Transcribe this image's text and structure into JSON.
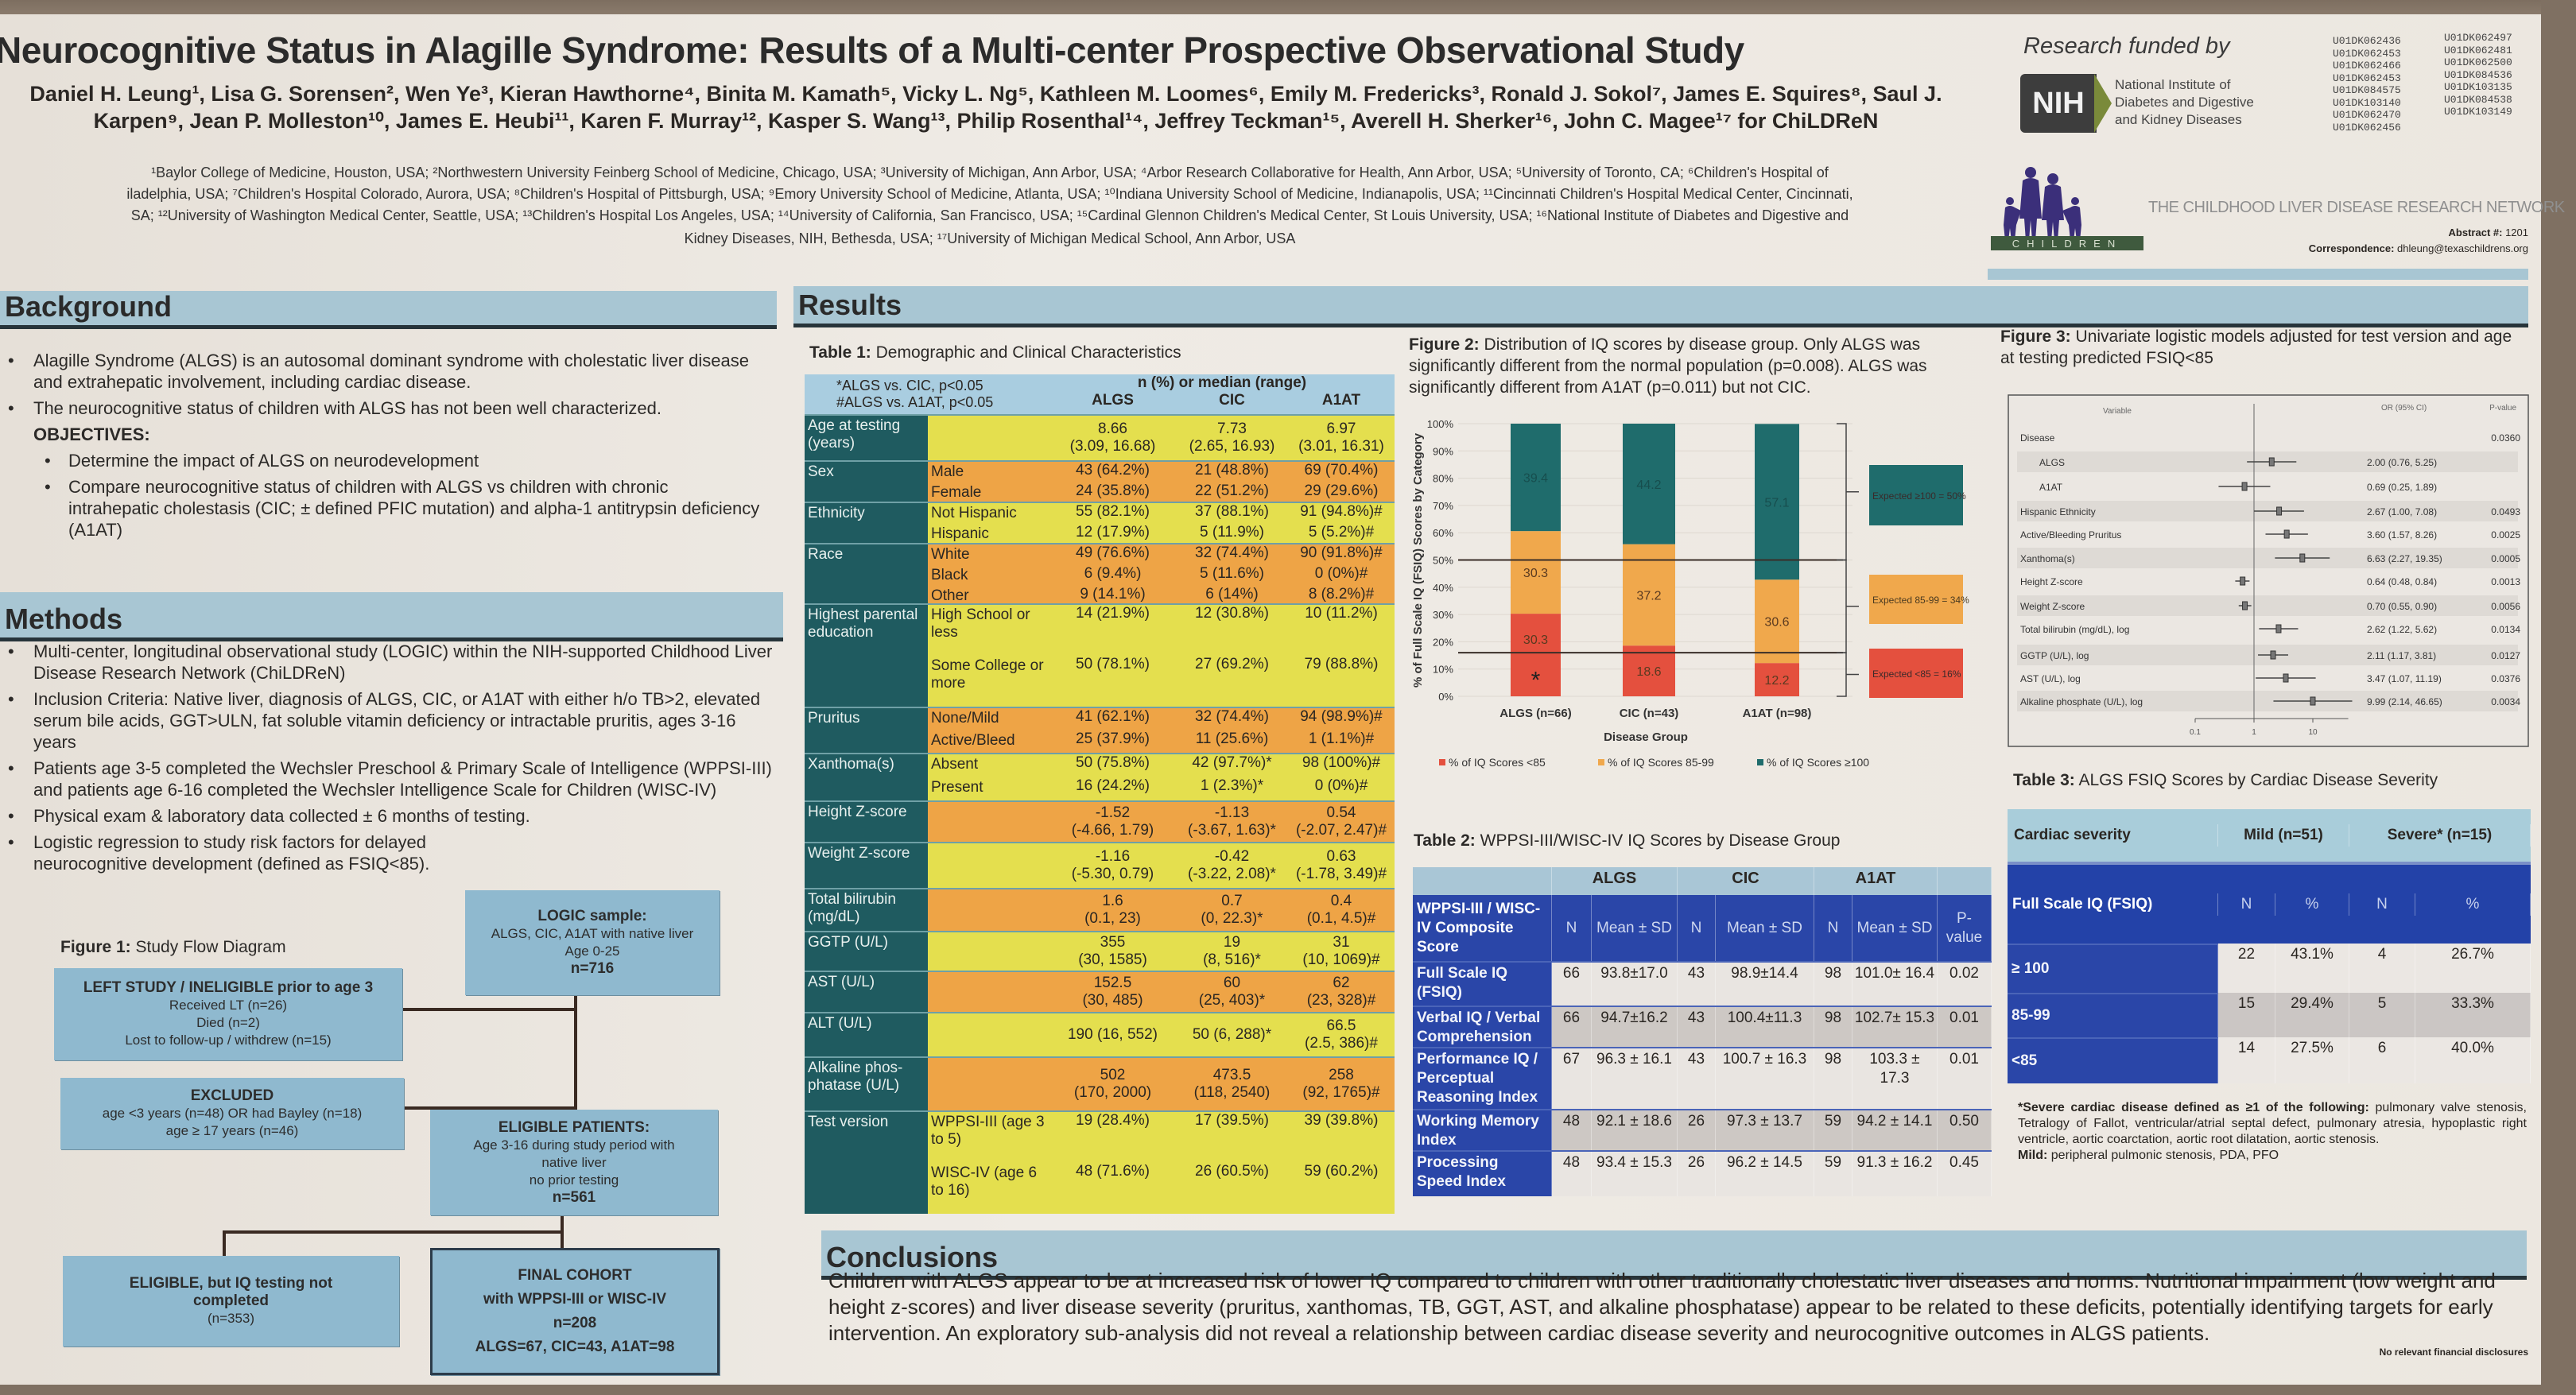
{
  "poster": {
    "title": "Neurocognitive Status in Alagille Syndrome: Results of a Multi-center Prospective Observational Study",
    "authors_line1": "Daniel H. Leung¹, Lisa G. Sorensen², Wen Ye³, Kieran Hawthorne⁴, Binita M. Kamath⁵, Vicky L. Ng⁵, Kathleen M. Loomes⁶, Emily M. Fredericks³, Ronald J. Sokol⁷, James E. Squires⁸, Saul J.",
    "authors_line2": "Karpen⁹, Jean P. Molleston¹⁰, James E. Heubi¹¹, Karen F. Murray¹², Kasper S. Wang¹³, Philip Rosenthal¹⁴, Jeffrey Teckman¹⁵, Averell H. Sherker¹⁶, John C. Magee¹⁷ for ChiLDReN",
    "affiliations": [
      "¹Baylor College of Medicine, Houston, USA; ²Northwestern University Feinberg School of Medicine, Chicago, USA; ³University of Michigan, Ann Arbor, USA; ⁴Arbor Research Collaborative for Health, Ann Arbor, USA; ⁵University of Toronto, CA; ⁶Children's Hospital of",
      "iladelphia, USA; ⁷Children's Hospital Colorado, Aurora, USA; ⁸Children's Hospital of Pittsburgh, USA; ⁹Emory University School of Medicine, Atlanta, USA; ¹⁰Indiana University School of Medicine, Indianapolis, USA; ¹¹Cincinnati Children's Hospital Medical Center, Cincinnati,",
      "SA; ¹²University of Washington Medical Center, Seattle, USA; ¹³Children's Hospital Los Angeles, USA; ¹⁴University of California, San Francisco, USA; ¹⁵Cardinal Glennon Children's Medical Center, St Louis University, USA; ¹⁶National Institute of Diabetes and Digestive and",
      "Kidney Diseases, NIH, Bethesda, USA; ¹⁷University of Michigan Medical School, Ann Arbor, USA"
    ]
  },
  "funding": {
    "label": "Research funded by",
    "nih_logo": "NIH",
    "institute_lines": [
      "National Institute of",
      "Diabetes and Digestive",
      "and Kidney Diseases"
    ],
    "grants_col1": [
      "U01DK062436",
      "U01DK062453",
      "U01DK062466",
      "U01DK062453",
      "U01DK084575",
      "U01DK103140",
      "U01DK062470",
      "U01DK062456"
    ],
    "grants_col2": [
      "U01DK062497",
      "U01DK062481",
      "U01DK062500",
      "U01DK084536",
      "U01DK103135",
      "U01DK084538",
      "U01DK103149"
    ]
  },
  "network": {
    "logo_text": "CHILDREN",
    "name": "THE CHILDHOOD LIVER DISEASE RESEARCH NETWORK",
    "abstract_label": "Abstract #:",
    "abstract_value": "1201",
    "correspondence_label": "Correspondence:",
    "correspondence_value": "dhleung@texaschildrens.org",
    "logo_colors": {
      "figures": "#3b2f7a",
      "band": "#3f5a3e"
    }
  },
  "background": {
    "heading": "Background",
    "bullets": [
      "Alagille Syndrome (ALGS) is an autosomal dominant syndrome with cholestatic liver disease and extrahepatic involvement, including cardiac disease.",
      "The neurocognitive status of children with ALGS has not been well characterized."
    ],
    "objectives_label": "OBJECTIVES:",
    "objectives": [
      "Determine the impact of ALGS on neurodevelopment",
      "Compare neurocognitive status of children with ALGS vs children with chronic intrahepatic cholestasis (CIC; ± defined PFIC mutation) and alpha-1 antitrypsin deficiency (A1AT)"
    ]
  },
  "methods": {
    "heading": "Methods",
    "bullets": [
      "Multi-center, longitudinal observational study (LOGIC) within the NIH-supported Childhood Liver Disease Research Network (ChiLDReN)",
      "Inclusion Criteria: Native liver, diagnosis of ALGS, CIC, or A1AT with either h/o TB>2, elevated serum bile acids, GGT>ULN, fat soluble vitamin deficiency or intractable pruritis, ages 3-16 years",
      "Patients age 3-5 completed the Wechsler Preschool & Primary Scale of Intelligence (WPPSI-III) and patients age 6-16 completed the Wechsler Intelligence Scale for Children (WISC-IV)",
      "Physical exam & laboratory data collected ± 6 months of testing.",
      "Logistic regression to study risk factors for delayed neurocognitive development (defined as FSIQ<85)."
    ]
  },
  "figure1": {
    "caption_bold": "Figure 1:",
    "caption": "Study Flow Diagram",
    "logic": {
      "title": "LOGIC sample:",
      "lines": [
        "ALGS, CIC, A1AT with native liver",
        "Age 0-25",
        "n=716"
      ]
    },
    "left_study": {
      "title_bold": "LEFT STUDY / INELIGIBLE",
      "title_rest": "prior to age 3",
      "lines": [
        "Received LT (n=26)",
        "Died (n=2)",
        "Lost to follow-up / withdrew (n=15)"
      ]
    },
    "excluded": {
      "title": "EXCLUDED",
      "lines": [
        "age <3 years (n=48) OR had Bayley (n=18)",
        "age ≥ 17 years (n=46)"
      ]
    },
    "eligible": {
      "title": "ELIGIBLE PATIENTS:",
      "lines": [
        "Age 3-16 during study period with",
        "native liver",
        "no prior testing",
        "n=561"
      ]
    },
    "not_tested": {
      "title": "ELIGIBLE, but IQ testing not completed",
      "lines": [
        "(n=353)"
      ]
    },
    "final": {
      "title": "FINAL COHORT",
      "lines": [
        "with WPPSI-III or WISC-IV",
        "n=208",
        "ALGS=67, CIC=43, A1AT=98"
      ]
    }
  },
  "results": {
    "heading": "Results"
  },
  "table1": {
    "title_bold": "Table 1:",
    "title": "Demographic and Clinical Characteristics",
    "note1": "*ALGS vs. CIC, p<0.05",
    "note2": "#ALGS vs. A1AT, p<0.05",
    "span_header": "n (%) or median (range)",
    "columns": [
      "ALGS",
      "CIC",
      "A1AT"
    ],
    "colors": {
      "yellow": "#e4df4e",
      "orange": "#eea446",
      "label": "#1f5b60",
      "header": "#a9cde0"
    },
    "groups": [
      {
        "label": "Age at testing (years)",
        "band": "yellow",
        "rows": [
          {
            "sub": "",
            "values": [
              "8.66\n(3.09, 16.68)",
              "7.73\n(2.65, 16.93)",
              "6.97\n(3.01, 16.31)"
            ]
          }
        ]
      },
      {
        "label": "Sex",
        "band": "orange",
        "rows": [
          {
            "sub": "Male",
            "values": [
              "43 (64.2%)",
              "21 (48.8%)",
              "69 (70.4%)"
            ]
          },
          {
            "sub": "Female",
            "values": [
              "24 (35.8%)",
              "22 (51.2%)",
              "29 (29.6%)"
            ]
          }
        ]
      },
      {
        "label": "Ethnicity",
        "band": "yellow",
        "rows": [
          {
            "sub": "Not Hispanic",
            "values": [
              "55 (82.1%)",
              "37 (88.1%)",
              "91 (94.8%)#"
            ]
          },
          {
            "sub": "Hispanic",
            "values": [
              "12 (17.9%)",
              "5 (11.9%)",
              "5 (5.2%)#"
            ]
          }
        ]
      },
      {
        "label": "Race",
        "band": "orange",
        "rows": [
          {
            "sub": "White",
            "values": [
              "49 (76.6%)",
              "32 (74.4%)",
              "90 (91.8%)#"
            ]
          },
          {
            "sub": "Black",
            "values": [
              "6 (9.4%)",
              "5 (11.6%)",
              "0 (0%)#"
            ]
          },
          {
            "sub": "Other",
            "values": [
              "9 (14.1%)",
              "6 (14%)",
              "8 (8.2%)#"
            ]
          }
        ]
      },
      {
        "label": "Highest parental education",
        "band": "yellow",
        "rows": [
          {
            "sub": "High School or less",
            "values": [
              "14 (21.9%)",
              "12 (30.8%)",
              "10 (11.2%)"
            ]
          },
          {
            "sub": "Some College or more",
            "values": [
              "50 (78.1%)",
              "27 (69.2%)",
              "79 (88.8%)"
            ]
          }
        ]
      },
      {
        "label": "Pruritus",
        "band": "orange",
        "rows": [
          {
            "sub": "None/Mild",
            "values": [
              "41 (62.1%)",
              "32 (74.4%)",
              "94 (98.9%)#"
            ]
          },
          {
            "sub": "Active/Bleed",
            "values": [
              "25 (37.9%)",
              "11 (25.6%)",
              "1 (1.1%)#"
            ]
          }
        ]
      },
      {
        "label": "Xanthoma(s)",
        "band": "yellow",
        "rows": [
          {
            "sub": "Absent",
            "values": [
              "50 (75.8%)",
              "42 (97.7%)*",
              "98 (100%)#"
            ]
          },
          {
            "sub": "Present",
            "values": [
              "16 (24.2%)",
              "1 (2.3%)*",
              "0 (0%)#"
            ]
          }
        ]
      },
      {
        "label": "Height Z-score",
        "band": "orange",
        "rows": [
          {
            "sub": "",
            "values": [
              "-1.52\n(-4.66, 1.79)",
              "-1.13\n(-3.67, 1.63)*",
              "0.54\n(-2.07, 2.47)#"
            ]
          }
        ]
      },
      {
        "label": "Weight Z-score",
        "band": "yellow",
        "rows": [
          {
            "sub": "",
            "values": [
              "-1.16\n(-5.30, 0.79)",
              "-0.42\n(-3.22, 2.08)*",
              "0.63\n(-1.78, 3.49)#"
            ]
          }
        ]
      },
      {
        "label": "Total bilirubin (mg/dL)",
        "band": "orange",
        "rows": [
          {
            "sub": "",
            "values": [
              "1.6\n(0.1, 23)",
              "0.7\n(0, 22.3)*",
              "0.4\n(0.1, 4.5)#"
            ]
          }
        ]
      },
      {
        "label": "GGTP (U/L)",
        "band": "yellow",
        "rows": [
          {
            "sub": "",
            "values": [
              "355\n(30, 1585)",
              "19\n(8, 516)*",
              "31\n(10, 1069)#"
            ]
          }
        ]
      },
      {
        "label": "AST (U/L)",
        "band": "orange",
        "rows": [
          {
            "sub": "",
            "values": [
              "152.5\n(30, 485)",
              "60\n(25, 403)*",
              "62\n(23, 328)#"
            ]
          }
        ]
      },
      {
        "label": "ALT (U/L)",
        "band": "yellow",
        "rows": [
          {
            "sub": "",
            "values": [
              "190 (16, 552)",
              "50 (6, 288)*",
              "66.5\n(2.5, 386)#"
            ]
          }
        ]
      },
      {
        "label": "Alkaline phos-phatase (U/L)",
        "band": "orange",
        "rows": [
          {
            "sub": "",
            "values": [
              "502\n(170, 2000)",
              "473.5\n(118, 2540)",
              "258\n(92, 1765)#"
            ]
          }
        ]
      },
      {
        "label": "Test version",
        "band": "yellow",
        "rows": [
          {
            "sub": "WPPSI-III (age 3 to 5)",
            "values": [
              "19 (28.4%)",
              "17 (39.5%)",
              "39 (39.8%)"
            ]
          },
          {
            "sub": "WISC-IV (age 6 to 16)",
            "values": [
              "48 (71.6%)",
              "26 (60.5%)",
              "59 (60.2%)"
            ]
          }
        ]
      }
    ]
  },
  "chart_data": [
    {
      "type": "bar",
      "stacked": true,
      "title": "Figure 2: Distribution of IQ scores by disease group. Only ALGS was significantly different from the normal population (p=0.008). ALGS was significantly different from A1AT (p=0.011) but not CIC.",
      "title_bold": "Figure 2:",
      "title_rest": "Distribution of IQ scores by disease group. Only ALGS was significantly different from the normal population (p=0.008). ALGS was significantly different from A1AT (p=0.011) but not CIC.",
      "xlabel": "Disease Group",
      "ylabel": "% of Full Scale IQ (FSIQ)  Scores by Category",
      "ylim": [
        0,
        100
      ],
      "yticks": [
        "0%",
        "10%",
        "20%",
        "30%",
        "40%",
        "50%",
        "60%",
        "70%",
        "80%",
        "90%",
        "100%"
      ],
      "categories": [
        "ALGS (n=66)",
        "CIC (n=43)",
        "A1AT (n=98)"
      ],
      "series": [
        {
          "name": "% of IQ Scores <85",
          "color": "#e4503e",
          "values": [
            30.3,
            18.6,
            12.2
          ],
          "labels": [
            "30.3",
            "18.6",
            "12.2"
          ]
        },
        {
          "name": "% of IQ Scores 85-99",
          "color": "#f0a84c",
          "values": [
            30.3,
            37.2,
            30.6
          ],
          "labels": [
            "30.3",
            "37.2",
            "30.6"
          ]
        },
        {
          "name": "% of IQ Scores ≥100",
          "color": "#1f6c6c",
          "values": [
            39.4,
            44.2,
            57.1
          ],
          "labels": [
            "39.4",
            "44.2",
            "57.1"
          ]
        }
      ],
      "significance_marker": "*",
      "reference_lines": [
        50,
        16
      ],
      "expected_boxes": [
        {
          "text": "Expected ≥100 = 50%",
          "color": "#1f6c6c"
        },
        {
          "text": "Expected 85-99 = 34%",
          "color": "#f0a84c"
        },
        {
          "text": "Expected <85 = 16%",
          "color": "#e4503e"
        }
      ],
      "legend": "bottom",
      "grid": true
    },
    {
      "type": "scatter",
      "subtype": "forest",
      "title_bold": "Figure 3:",
      "title_rest": "Univariate logistic models adjusted for test version and age at testing predicted FSIQ<85",
      "x_scale": "log",
      "reference": 1,
      "xticks": [
        "0.1",
        "1",
        "10"
      ],
      "header_variable": "Variable",
      "header_or": "OR (95% CI)",
      "header_p": "P-value",
      "rows": [
        {
          "label": "Disease",
          "indent": false,
          "or": null,
          "lo": null,
          "hi": null,
          "or_text": "",
          "p": "0.0360"
        },
        {
          "label": "ALGS",
          "indent": true,
          "or": 2.0,
          "lo": 0.76,
          "hi": 5.25,
          "or_text": "2.00 (0.76, 5.25)",
          "p": ""
        },
        {
          "label": "A1AT",
          "indent": true,
          "or": 0.69,
          "lo": 0.25,
          "hi": 1.89,
          "or_text": "0.69 (0.25, 1.89)",
          "p": ""
        },
        {
          "label": "Hispanic Ethnicity",
          "indent": false,
          "or": 2.67,
          "lo": 1.0,
          "hi": 7.08,
          "or_text": "2.67 (1.00, 7.08)",
          "p": "0.0493"
        },
        {
          "label": "Active/Bleeding Pruritus",
          "indent": false,
          "or": 3.6,
          "lo": 1.57,
          "hi": 8.26,
          "or_text": "3.60 (1.57, 8.26)",
          "p": "0.0025"
        },
        {
          "label": "Xanthoma(s)",
          "indent": false,
          "or": 6.63,
          "lo": 2.27,
          "hi": 19.35,
          "or_text": "6.63 (2.27, 19.35)",
          "p": "0.0005"
        },
        {
          "label": "Height Z-score",
          "indent": false,
          "or": 0.64,
          "lo": 0.48,
          "hi": 0.84,
          "or_text": "0.64 (0.48, 0.84)",
          "p": "0.0013"
        },
        {
          "label": "Weight Z-score",
          "indent": false,
          "or": 0.7,
          "lo": 0.55,
          "hi": 0.9,
          "or_text": "0.70 (0.55, 0.90)",
          "p": "0.0056"
        },
        {
          "label": "Total bilirubin (mg/dL), log",
          "indent": false,
          "or": 2.62,
          "lo": 1.22,
          "hi": 5.62,
          "or_text": "2.62 (1.22, 5.62)",
          "p": "0.0134"
        },
        {
          "label": "GGTP (U/L), log",
          "indent": false,
          "or": 2.11,
          "lo": 1.17,
          "hi": 3.81,
          "or_text": "2.11 (1.17, 3.81)",
          "p": "0.0127"
        },
        {
          "label": "AST (U/L), log",
          "indent": false,
          "or": 3.47,
          "lo": 1.07,
          "hi": 11.19,
          "or_text": "3.47 (1.07, 11.19)",
          "p": "0.0376"
        },
        {
          "label": "Alkaline phosphate (U/L), log",
          "indent": false,
          "or": 9.99,
          "lo": 2.14,
          "hi": 46.65,
          "or_text": "9.99 (2.14, 46.65)",
          "p": "0.0034"
        }
      ]
    }
  ],
  "table2": {
    "title_bold": "Table 2:",
    "title": "WPPSI-III/WISC-IV IQ Scores by Disease Group",
    "groups": [
      "ALGS",
      "CIC",
      "A1AT"
    ],
    "header": [
      "WPPSI-III / WISC-IV Composite Score",
      "N",
      "Mean ± SD",
      "N",
      "Mean ± SD",
      "N",
      "Mean ± SD",
      "P-value"
    ],
    "rows": [
      [
        "Full Scale IQ (FSIQ)",
        "66",
        "93.8±17.0",
        "43",
        "98.9±14.4",
        "98",
        "101.0± 16.4",
        "0.02"
      ],
      [
        "Verbal IQ / Verbal Comprehension",
        "66",
        "94.7±16.2",
        "43",
        "100.4±11.3",
        "98",
        "102.7± 15.3",
        "0.01"
      ],
      [
        "Performance IQ / Perceptual Reasoning Index",
        "67",
        "96.3 ± 16.1",
        "43",
        "100.7 ± 16.3",
        "98",
        "103.3 ± 17.3",
        "0.01"
      ],
      [
        "Working Memory Index",
        "48",
        "92.1 ± 18.6",
        "26",
        "97.3 ± 13.7",
        "59",
        "94.2 ± 14.1",
        "0.50"
      ],
      [
        "Processing Speed Index",
        "48",
        "93.4 ± 15.3",
        "26",
        "96.2 ± 14.5",
        "59",
        "91.3 ± 16.2",
        "0.45"
      ]
    ]
  },
  "table3": {
    "title_bold": "Table 3:",
    "title": "ALGS FSIQ Scores by Cardiac Disease Severity",
    "group_header": [
      "Cardiac severity",
      "Mild (n=51)",
      "Severe* (n=15)"
    ],
    "header": [
      "Full Scale IQ (FSIQ)",
      "N",
      "%",
      "N",
      "%"
    ],
    "rows": [
      [
        "≥ 100",
        "22",
        "43.1%",
        "4",
        "26.7%"
      ],
      [
        "85-99",
        "15",
        "29.4%",
        "5",
        "33.3%"
      ],
      [
        "<85",
        "14",
        "27.5%",
        "6",
        "40.0%"
      ]
    ],
    "footnote_bold": "*Severe cardiac disease defined as ≥1 of the following:",
    "footnote": "pulmonary valve stenosis, Tetralogy of Fallot, ventricular/atrial septal defect, pulmonary atresia, hypoplastic right ventricle, aortic coarctation, aortic root dilatation, aortic stenosis.",
    "mild_bold": "Mild:",
    "mild": "peripheral pulmonic stenosis, PDA, PFO"
  },
  "conclusions": {
    "heading": "Conclusions",
    "text": "Children with ALGS appear to be at increased risk of lower IQ compared to children with other traditionally cholestatic liver diseases and norms. Nutritional impairment (low weight and height z-scores) and liver disease severity (pruritus, xanthomas, TB, GGT, AST, and alkaline phosphatase) appear to be related to these deficits, potentially identifying targets for early intervention. An exploratory sub-analysis did not reveal a relationship between cardiac disease severity and neurocognitive outcomes in ALGS patients.",
    "disclosure": "No relevant financial disclosures"
  },
  "colors": {
    "section_header": "#a8c6d3",
    "flow_box": "#8fb9cf",
    "table_blue": "#2a46a8"
  }
}
